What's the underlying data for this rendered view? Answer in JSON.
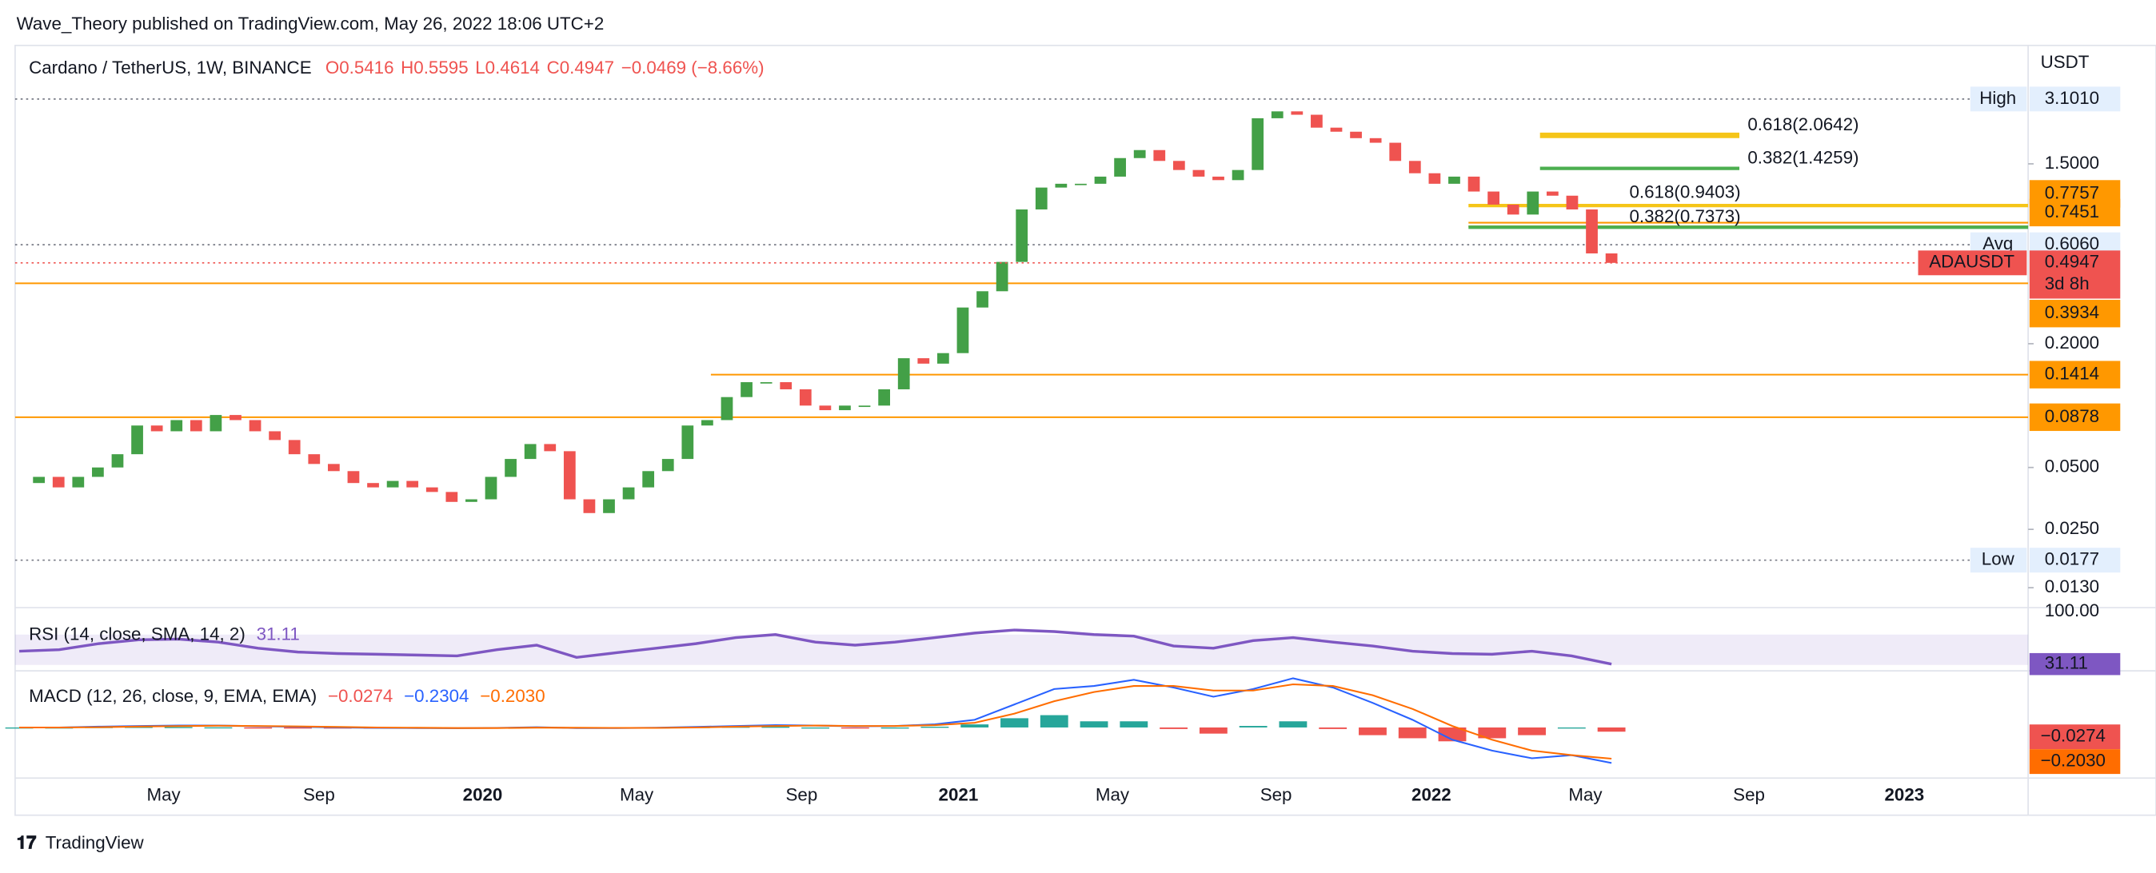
{
  "header": {
    "publisher": "Wave_Theory published on TradingView.com, May 26, 2022 18:06 UTC+2",
    "footer": "TradingView"
  },
  "chart_data": {
    "type": "candlestick",
    "title": "Cardano / TetherUS, 1W, BINANCE",
    "ohlc": [
      "O0.5416",
      "H0.5595",
      "L0.4614",
      "C0.4947",
      "−0.0469 (−8.66%)"
    ],
    "currency": "USDT",
    "log_scale": true,
    "ylim": [
      0.0104,
      5.48
    ],
    "yticks": [
      {
        "value": 1.5,
        "label": "1.5000"
      },
      {
        "value": 0.2,
        "label": "0.2000"
      },
      {
        "value": 0.05,
        "label": "0.0500"
      },
      {
        "value": 0.025,
        "label": "0.0250"
      },
      {
        "value": 0.013,
        "label": "0.0130"
      }
    ],
    "xticks": [
      "May",
      "Sep",
      "2020",
      "May",
      "Sep",
      "2021",
      "May",
      "Sep",
      "2022",
      "May",
      "Sep",
      "2023"
    ],
    "up_color": "#43a047",
    "down_color": "#ef5350",
    "closes": [
      0.042,
      0.045,
      0.04,
      0.045,
      0.05,
      0.058,
      0.08,
      0.075,
      0.085,
      0.075,
      0.09,
      0.085,
      0.075,
      0.068,
      0.058,
      0.052,
      0.048,
      0.042,
      0.04,
      0.043,
      0.04,
      0.038,
      0.034,
      0.035,
      0.045,
      0.055,
      0.065,
      0.06,
      0.035,
      0.03,
      0.035,
      0.04,
      0.048,
      0.055,
      0.08,
      0.085,
      0.11,
      0.13,
      0.13,
      0.12,
      0.1,
      0.095,
      0.1,
      0.1,
      0.12,
      0.17,
      0.16,
      0.18,
      0.3,
      0.36,
      0.5,
      0.9,
      1.15,
      1.2,
      1.2,
      1.3,
      1.6,
      1.75,
      1.55,
      1.4,
      1.3,
      1.25,
      1.4,
      2.5,
      2.7,
      2.6,
      2.25,
      2.15,
      2.0,
      1.9,
      1.55,
      1.35,
      1.2,
      1.3,
      1.1,
      0.95,
      0.85,
      1.1,
      1.05,
      0.9,
      0.55,
      0.4947
    ],
    "high": {
      "name": "High",
      "value": 3.101,
      "label": "3.1010"
    },
    "low": {
      "name": "Low",
      "value": 0.0177,
      "label": "0.0177"
    },
    "avg": {
      "name": "Avg",
      "value": 0.606,
      "label": "0.6060"
    },
    "last": {
      "name": "ADAUSDT",
      "value": 0.4947,
      "label": "0.4947",
      "countdown": "3d 8h"
    },
    "levels": [
      {
        "value": 0.7757,
        "label": "0.7757"
      },
      {
        "value": 0.7451,
        "label": "0.7451"
      },
      {
        "value": 0.3934,
        "label": "0.3934"
      },
      {
        "value": 0.1414,
        "label": "0.1414"
      },
      {
        "value": 0.0878,
        "label": "0.0878"
      }
    ],
    "level_color": "#ff9800",
    "fibs": [
      {
        "value": 2.0642,
        "label": "0.618(2.0642)",
        "color": "#f5c518"
      },
      {
        "value": 1.4259,
        "label": "0.382(1.4259)",
        "color": "#4caf50"
      },
      {
        "value": 0.9403,
        "label": "0.618(0.9403)",
        "color": "#f5c518"
      },
      {
        "value": 0.7373,
        "label": "0.382(0.7373)",
        "color": "#4caf50"
      }
    ],
    "rsi": {
      "title": "RSI (14, close, SMA, 14, 2)",
      "color": "#7e57c2",
      "ylim": [
        24,
        100
      ],
      "yticks": [
        {
          "value": 100,
          "label": "100.00"
        }
      ],
      "band": [
        30,
        70
      ],
      "values": [
        48,
        50,
        58,
        63,
        64,
        60,
        52,
        47,
        45,
        44,
        43,
        42,
        50,
        56,
        40,
        46,
        52,
        58,
        66,
        70,
        60,
        56,
        60,
        66,
        72,
        76,
        74,
        70,
        68,
        55,
        52,
        62,
        66,
        60,
        55,
        48,
        45,
        44,
        48,
        42,
        31.11
      ]
    },
    "macd": {
      "title": "MACD (12, 26, close, 9, EMA, EMA)",
      "ylim": [
        -0.32,
        0.35
      ],
      "macd_color": "#2962ff",
      "signal_color": "#ff6d00",
      "histogram_label": "−0.0274",
      "macd_label": "−0.2304",
      "signal_label": "−0.2030",
      "histogram": [
        0,
        0,
        0.003,
        0.004,
        0.003,
        0.001,
        -0.002,
        -0.003,
        -0.003,
        -0.003,
        -0.002,
        -0.001,
        0.001,
        0.003,
        -0.002,
        -0.001,
        0.001,
        0.003,
        0.005,
        0.005,
        0,
        -0.002,
        0,
        0.005,
        0.02,
        0.06,
        0.08,
        0.04,
        0.04,
        -0.01,
        -0.04,
        0.01,
        0.04,
        -0.01,
        -0.05,
        -0.07,
        -0.09,
        -0.07,
        -0.05,
        0,
        -0.0274
      ],
      "macd": [
        0,
        0,
        0.005,
        0.01,
        0.012,
        0.012,
        0.008,
        0.004,
        0,
        -0.003,
        -0.004,
        -0.005,
        -0.003,
        0.002,
        -0.004,
        -0.004,
        -0.002,
        0.003,
        0.01,
        0.015,
        0.012,
        0.008,
        0.01,
        0.02,
        0.05,
        0.15,
        0.25,
        0.27,
        0.31,
        0.26,
        0.2,
        0.25,
        0.32,
        0.26,
        0.16,
        0.05,
        -0.08,
        -0.15,
        -0.2,
        -0.18,
        -0.2304
      ],
      "signal": [
        0,
        0,
        0.002,
        0.006,
        0.009,
        0.011,
        0.01,
        0.007,
        0.003,
        0,
        -0.002,
        -0.004,
        -0.004,
        -0.001,
        -0.002,
        -0.003,
        -0.003,
        0,
        0.005,
        0.01,
        0.012,
        0.01,
        0.01,
        0.015,
        0.03,
        0.09,
        0.17,
        0.23,
        0.27,
        0.27,
        0.24,
        0.24,
        0.28,
        0.27,
        0.21,
        0.12,
        0.01,
        -0.08,
        -0.15,
        -0.18,
        -0.203
      ]
    }
  }
}
